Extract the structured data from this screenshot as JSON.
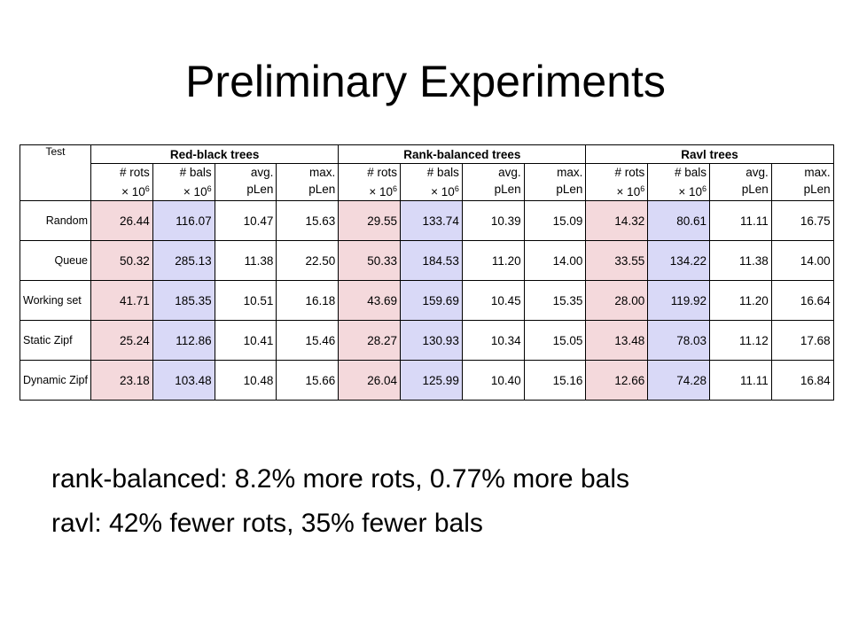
{
  "title": "Preliminary Experiments",
  "table": {
    "test_header": "Test",
    "groups": [
      "Red-black trees",
      "Rank-balanced trees",
      "Ravl trees"
    ],
    "subcolumns": [
      {
        "line1": "# rots",
        "line2": "× 10",
        "exp": "6"
      },
      {
        "line1": "# bals",
        "line2": "× 10",
        "exp": "6"
      },
      {
        "line1": "avg.",
        "line2": "pLen",
        "exp": ""
      },
      {
        "line1": "max.",
        "line2": "pLen",
        "exp": ""
      }
    ],
    "rows": [
      {
        "label": "Random",
        "values": [
          "26.44",
          "116.07",
          "10.47",
          "15.63",
          "29.55",
          "133.74",
          "10.39",
          "15.09",
          "14.32",
          "80.61",
          "11.11",
          "16.75"
        ]
      },
      {
        "label": "Queue",
        "values": [
          "50.32",
          "285.13",
          "11.38",
          "22.50",
          "50.33",
          "184.53",
          "11.20",
          "14.00",
          "33.55",
          "134.22",
          "11.38",
          "14.00"
        ]
      },
      {
        "label": "Working set",
        "values": [
          "41.71",
          "185.35",
          "10.51",
          "16.18",
          "43.69",
          "159.69",
          "10.45",
          "15.35",
          "28.00",
          "119.92",
          "11.20",
          "16.64"
        ]
      },
      {
        "label": "Static Zipf",
        "values": [
          "25.24",
          "112.86",
          "10.41",
          "15.46",
          "28.27",
          "130.93",
          "10.34",
          "15.05",
          "13.48",
          "78.03",
          "11.12",
          "17.68"
        ]
      },
      {
        "label": "Dynamic Zipf",
        "values": [
          "23.18",
          "103.48",
          "10.48",
          "15.66",
          "26.04",
          "125.99",
          "10.40",
          "15.16",
          "12.66",
          "74.28",
          "11.11",
          "16.84"
        ]
      }
    ]
  },
  "bullets": [
    "rank-balanced: 8.2% more rots, 0.77% more bals",
    "ravl: 42% fewer rots, 35% fewer bals"
  ],
  "colors": {
    "rots_cell": "#f4d9dc",
    "bals_cell": "#d9d9f7"
  }
}
